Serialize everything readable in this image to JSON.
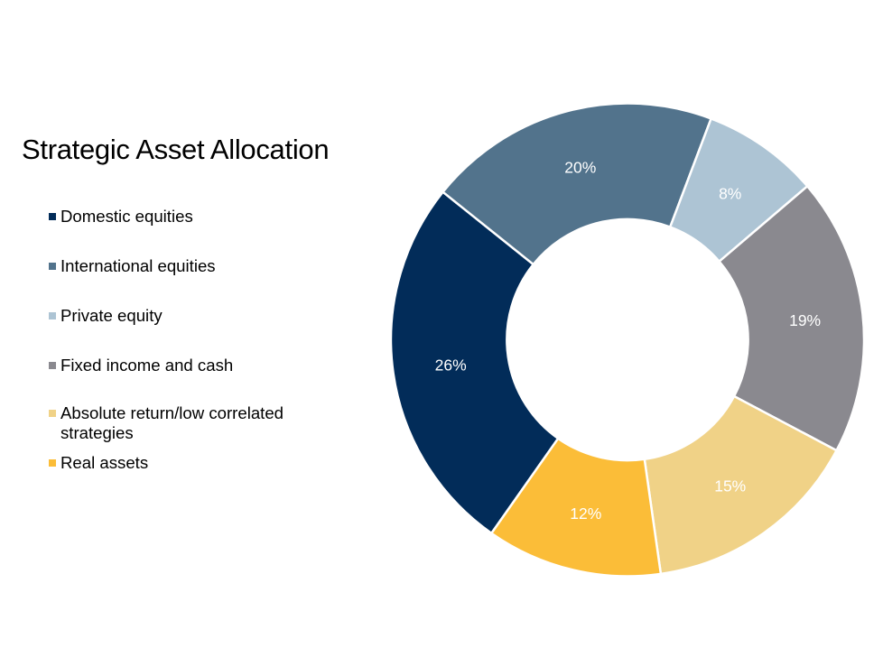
{
  "title": "Strategic Asset Allocation",
  "legend": {
    "items": [
      {
        "label": "Domestic equities",
        "color": "#022c59"
      },
      {
        "label": "International equities",
        "color": "#52738c"
      },
      {
        "label": "Private equity",
        "color": "#adc4d4"
      },
      {
        "label": "Fixed income and cash",
        "color": "#8a898f"
      },
      {
        "label": "Absolute return/low correlated strategies",
        "color": "#f0d287"
      },
      {
        "label": "Real assets",
        "color": "#fbbd38"
      }
    ]
  },
  "chart_data": {
    "type": "pie",
    "subtype": "donut",
    "title": "Strategic Asset Allocation",
    "categories": [
      "Domestic equities",
      "International equities",
      "Private equity",
      "Fixed income and cash",
      "Absolute return/low correlated strategies",
      "Real assets"
    ],
    "values": [
      26,
      20,
      8,
      19,
      15,
      12
    ],
    "labels": [
      "26%",
      "20%",
      "8%",
      "19%",
      "15%",
      "12%"
    ],
    "colors": [
      "#022c59",
      "#52738c",
      "#adc4d4",
      "#8a898f",
      "#f0d287",
      "#fbbd38"
    ],
    "unit": "%",
    "legend_position": "left",
    "start_angle_deg_clockwise_from_top": 215.1,
    "direction": "clockwise",
    "hole_ratio": 0.51
  }
}
